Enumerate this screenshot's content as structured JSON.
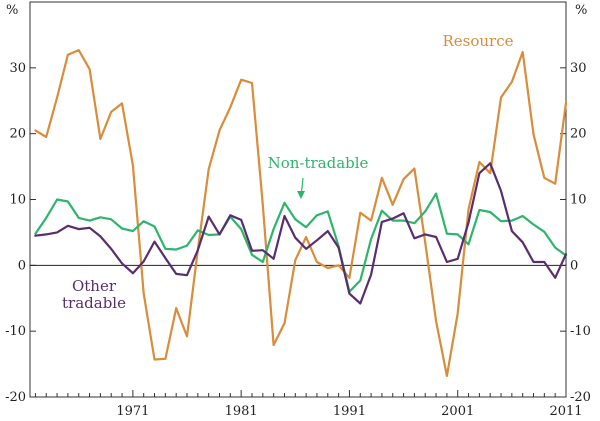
{
  "chart_data": {
    "type": "line",
    "title": "",
    "y_unit_left": "%",
    "y_unit_right": "%",
    "ylim": [
      -20,
      40
    ],
    "yticks": [
      -20,
      -10,
      0,
      10,
      20,
      30
    ],
    "xlim": [
      1961.5,
      2011
    ],
    "xticks": [
      1971,
      1981,
      1991,
      2001,
      2011
    ],
    "grid": false,
    "series": [
      {
        "name": "Resource",
        "color": "#D98C3A",
        "x": [
          1962,
          1963,
          1964,
          1965,
          1966,
          1967,
          1968,
          1969,
          1970,
          1971,
          1972,
          1973,
          1974,
          1975,
          1976,
          1977,
          1978,
          1979,
          1980,
          1981,
          1982,
          1983,
          1984,
          1985,
          1986,
          1987,
          1988,
          1989,
          1990,
          1991,
          1992,
          1993,
          1994,
          1995,
          1996,
          1997,
          1998,
          1999,
          2000,
          2001,
          2002,
          2003,
          2004,
          2005,
          2006,
          2007,
          2008,
          2009,
          2010,
          2011
        ],
        "values": [
          20.5,
          19.5,
          25.5,
          32,
          32.7,
          29.8,
          19.2,
          23.3,
          24.6,
          15.2,
          -4.3,
          -14.3,
          -14.2,
          -6.5,
          -10.8,
          2.3,
          14.6,
          20.5,
          24,
          28.2,
          27.7,
          9.2,
          -12.1,
          -8.8,
          0.8,
          4.3,
          0.5,
          -0.4,
          0,
          -1.9,
          8,
          6.8,
          13.3,
          9.2,
          13.1,
          14.7,
          3.5,
          -8.5,
          -16.8,
          -7.3,
          8.5,
          15.7,
          14,
          25.5,
          27.9,
          32.4,
          19.9,
          13.3,
          12.4,
          24.7
        ]
      },
      {
        "name": "Non-tradable",
        "color": "#2FB56B",
        "x": [
          1962,
          1963,
          1964,
          1965,
          1966,
          1967,
          1968,
          1969,
          1970,
          1971,
          1972,
          1973,
          1974,
          1975,
          1976,
          1977,
          1978,
          1979,
          1980,
          1981,
          1982,
          1983,
          1984,
          1985,
          1986,
          1987,
          1988,
          1989,
          1990,
          1991,
          1992,
          1993,
          1994,
          1995,
          1996,
          1997,
          1998,
          1999,
          2000,
          2001,
          2002,
          2003,
          2004,
          2005,
          2006,
          2007,
          2008,
          2009,
          2010,
          2011
        ],
        "values": [
          4.8,
          7.2,
          10,
          9.7,
          7.2,
          6.8,
          7.3,
          7,
          5.6,
          5.2,
          6.7,
          5.9,
          2.5,
          2.4,
          3,
          5.3,
          4.6,
          4.7,
          7.4,
          5.5,
          1.6,
          0.5,
          5.5,
          9.5,
          7,
          5.8,
          7.6,
          8.2,
          2.9,
          -4,
          -2.3,
          4,
          8.3,
          6.8,
          6.8,
          6.4,
          8.2,
          10.9,
          4.8,
          4.7,
          3.2,
          8.4,
          8.1,
          6.7,
          6.8,
          7.5,
          6.2,
          5.1,
          2.7,
          1.5
        ]
      },
      {
        "name": "Other tradable",
        "color": "#5A2D6E",
        "x": [
          1962,
          1963,
          1964,
          1965,
          1966,
          1967,
          1968,
          1969,
          1970,
          1971,
          1972,
          1973,
          1974,
          1975,
          1976,
          1977,
          1978,
          1979,
          1980,
          1981,
          1982,
          1983,
          1984,
          1985,
          1986,
          1987,
          1988,
          1989,
          1990,
          1991,
          1992,
          1993,
          1994,
          1995,
          1996,
          1997,
          1998,
          1999,
          2000,
          2001,
          2002,
          2003,
          2004,
          2005,
          2006,
          2007,
          2008,
          2009,
          2010,
          2011
        ],
        "values": [
          4.5,
          4.7,
          5,
          6,
          5.5,
          5.7,
          4.4,
          2.5,
          0.3,
          -1.2,
          0.6,
          3.6,
          1.1,
          -1.3,
          -1.5,
          2.3,
          7.4,
          4.7,
          7.6,
          6.9,
          2.2,
          2.3,
          1,
          7.5,
          4.2,
          2.5,
          3.8,
          5.2,
          2.7,
          -4.3,
          -5.8,
          -1.4,
          6.6,
          7.1,
          7.9,
          4.1,
          4.7,
          4.3,
          0.5,
          1,
          6.5,
          14,
          15.5,
          11.3,
          5.2,
          3.5,
          0.5,
          0.5,
          -1.9,
          1.7
        ]
      }
    ],
    "labels": [
      {
        "text": "Resource",
        "series": "Resource"
      },
      {
        "text": "Non-tradable",
        "series": "Non-tradable"
      },
      {
        "text_lines": [
          "Other",
          "tradable"
        ],
        "series": "Other tradable"
      }
    ]
  }
}
